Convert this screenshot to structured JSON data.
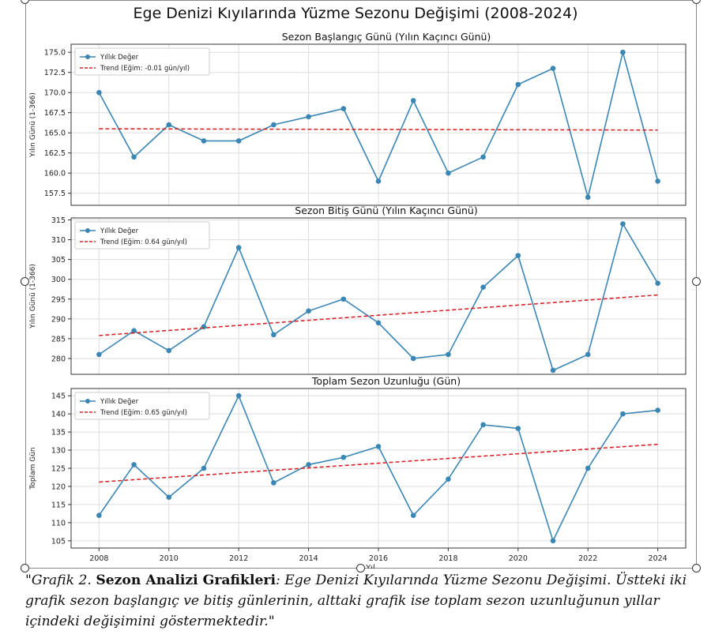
{
  "figure_title": "Ege Denizi Kıyılarında Yüzme Sezonu Değişimi (2008-2024)",
  "caption": {
    "prefix": "\"Grafik 2. ",
    "bold": "Sezon Analizi Grafikleri",
    "rest": ": Ege Denizi Kıyılarında Yüzme Sezonu Değişimi. Üstteki iki grafik sezon başlangıç ve bitiş günlerinin, alttaki grafik ise toplam sezon uzunluğunun yıllar içindeki değişimini göstermektedir.\""
  },
  "chart_data": [
    {
      "type": "line",
      "title": "Sezon Başlangıç Günü (Yılın Kaçıncı Günü)",
      "xlabel": "",
      "ylabel": "Yılın Günü (1-366)",
      "x": [
        2008,
        2009,
        2010,
        2011,
        2012,
        2013,
        2014,
        2015,
        2016,
        2017,
        2018,
        2019,
        2020,
        2021,
        2022,
        2023,
        2024
      ],
      "ylim": [
        156,
        176
      ],
      "yticks": [
        157.5,
        160.0,
        162.5,
        165.0,
        167.5,
        170.0,
        172.5,
        175.0
      ],
      "ytick_labels": [
        "157.5",
        "160.0",
        "162.5",
        "165.0",
        "167.5",
        "170.0",
        "172.5",
        "175.0"
      ],
      "grid": true,
      "legend_position": "top-left",
      "series": [
        {
          "name": "Yıllık Değer",
          "style": "line-marker",
          "color": "#3a86b4",
          "values": [
            170,
            162,
            166,
            164,
            164,
            166,
            167,
            168,
            159,
            169,
            160,
            162,
            171,
            173,
            157,
            175,
            159
          ]
        },
        {
          "name": "Trend (Eğim: -0.01 gün/yıl)",
          "style": "dashed",
          "color": "#d62728",
          "values": [
            165.5,
            165.49,
            165.48,
            165.47,
            165.46,
            165.45,
            165.44,
            165.43,
            165.42,
            165.41,
            165.4,
            165.39,
            165.38,
            165.37,
            165.36,
            165.35,
            165.34
          ]
        }
      ]
    },
    {
      "type": "line",
      "title": "Sezon Bitiş Günü (Yılın Kaçıncı Günü)",
      "xlabel": "",
      "ylabel": "Yılın Günü (1-366)",
      "x": [
        2008,
        2009,
        2010,
        2011,
        2012,
        2013,
        2014,
        2015,
        2016,
        2017,
        2018,
        2019,
        2020,
        2021,
        2022,
        2023,
        2024
      ],
      "ylim": [
        276,
        315.5
      ],
      "yticks": [
        280,
        285,
        290,
        295,
        300,
        305,
        310,
        315
      ],
      "ytick_labels": [
        "280",
        "285",
        "290",
        "295",
        "300",
        "305",
        "310",
        "315"
      ],
      "grid": true,
      "legend_position": "top-left",
      "series": [
        {
          "name": "Yıllık Değer",
          "style": "line-marker",
          "color": "#3a86b4",
          "values": [
            281,
            287,
            282,
            288,
            308,
            286,
            292,
            295,
            289,
            280,
            281,
            298,
            306,
            277,
            281,
            314,
            299
          ]
        },
        {
          "name": "Trend (Eğim: 0.64 gün/yıl)",
          "style": "dashed",
          "color": "#d62728",
          "values": [
            285.8,
            286.44,
            287.08,
            287.72,
            288.36,
            289.0,
            289.64,
            290.28,
            290.92,
            291.56,
            292.2,
            292.84,
            293.48,
            294.12,
            294.76,
            295.4,
            296.04
          ]
        }
      ]
    },
    {
      "type": "line",
      "title": "Toplam Sezon Uzunluğu (Gün)",
      "xlabel": "Yıl",
      "ylabel": "Toplam Gün",
      "x": [
        2008,
        2009,
        2010,
        2011,
        2012,
        2013,
        2014,
        2015,
        2016,
        2017,
        2018,
        2019,
        2020,
        2021,
        2022,
        2023,
        2024
      ],
      "ylim": [
        103,
        147
      ],
      "yticks": [
        105,
        110,
        115,
        120,
        125,
        130,
        135,
        140,
        145
      ],
      "ytick_labels": [
        "105",
        "110",
        "115",
        "120",
        "125",
        "130",
        "135",
        "140",
        "145"
      ],
      "xticks": [
        2008,
        2010,
        2012,
        2014,
        2016,
        2018,
        2020,
        2022,
        2024
      ],
      "grid": true,
      "legend_position": "top-left",
      "series": [
        {
          "name": "Yıllık Değer",
          "style": "line-marker",
          "color": "#3a86b4",
          "values": [
            112,
            126,
            117,
            125,
            145,
            121,
            126,
            128,
            131,
            112,
            122,
            137,
            136,
            105,
            125,
            140,
            141
          ]
        },
        {
          "name": "Trend (Eğim: 0.65 gün/yıl)",
          "style": "dashed",
          "color": "#d62728",
          "values": [
            121.2,
            121.85,
            122.5,
            123.15,
            123.8,
            124.45,
            125.1,
            125.75,
            126.4,
            127.05,
            127.7,
            128.35,
            129.0,
            129.65,
            130.3,
            130.95,
            131.6
          ]
        }
      ]
    }
  ]
}
